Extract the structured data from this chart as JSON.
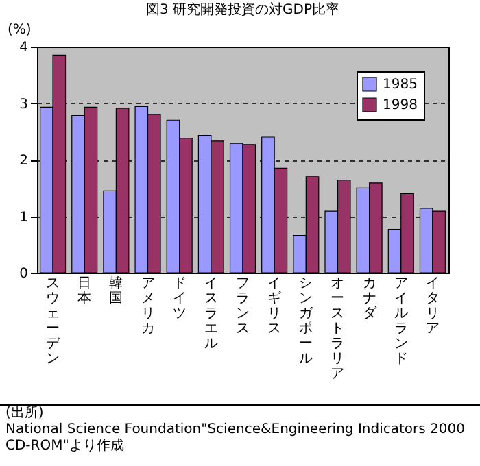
{
  "chart_data": {
    "type": "bar",
    "title": "図3 研究開発投資の対GDP比率",
    "ylabel": "(%)",
    "categories": [
      "スウェーデン",
      "日本",
      "韓国",
      "アメリカ",
      "ドイツ",
      "イスラエル",
      "フランス",
      "イギリス",
      "シンガポール",
      "オーストラリア",
      "カナダ",
      "アイルランド",
      "イタリア"
    ],
    "series": [
      {
        "name": "1985",
        "color": "#9999ff",
        "values": [
          2.93,
          2.78,
          1.45,
          2.94,
          2.7,
          2.43,
          2.29,
          2.4,
          0.66,
          1.09,
          1.5,
          0.77,
          1.14
        ]
      },
      {
        "name": "1998",
        "color": "#993366",
        "values": [
          3.85,
          2.93,
          2.91,
          2.8,
          2.38,
          2.33,
          2.27,
          1.85,
          1.7,
          1.64,
          1.59,
          1.4,
          1.09
        ]
      }
    ],
    "ylim": [
      0,
      4
    ],
    "yticks": [
      0,
      1,
      2,
      3,
      4
    ],
    "grid": "y",
    "legend": "top right",
    "annotations": [
      "(出所)",
      "National Science Foundation\"Science&Engineering Indicators 2000 CD-ROM\"より作成"
    ]
  }
}
